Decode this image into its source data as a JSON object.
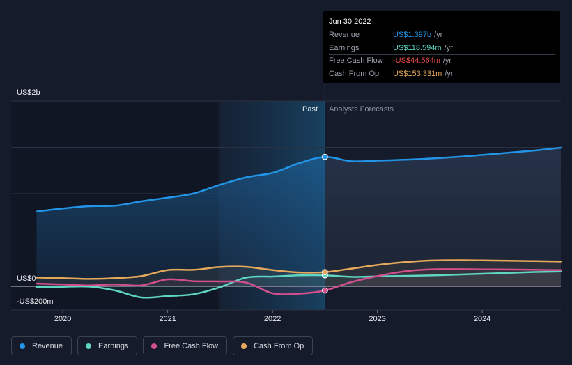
{
  "chart_data": {
    "type": "line",
    "y_axis_labels": [
      "US$2b",
      "US$0",
      "-US$200m"
    ],
    "x_tick_labels": [
      "2020",
      "2021",
      "2022",
      "2023",
      "2024"
    ],
    "x_ticks": [
      2020,
      2021,
      2022,
      2023,
      2024
    ],
    "xlim": [
      2019.72,
      2024.75
    ],
    "ylim": [
      -200,
      2000
    ],
    "divider_x": 2022.5,
    "past_band_start": 2021.5,
    "past_label": "Past",
    "forecast_label": "Analysts Forecasts",
    "series": [
      {
        "name": "Revenue",
        "color": "#2395e8",
        "points": [
          [
            2019.75,
            807
          ],
          [
            2020,
            840
          ],
          [
            2020.25,
            865
          ],
          [
            2020.5,
            870
          ],
          [
            2020.75,
            917
          ],
          [
            2021,
            957
          ],
          [
            2021.25,
            1003
          ],
          [
            2021.5,
            1096
          ],
          [
            2021.75,
            1177
          ],
          [
            2022,
            1224
          ],
          [
            2022.25,
            1327
          ],
          [
            2022.5,
            1397
          ],
          [
            2022.75,
            1350
          ],
          [
            2023,
            1357
          ],
          [
            2023.25,
            1366
          ],
          [
            2023.5,
            1379
          ],
          [
            2023.75,
            1396
          ],
          [
            2024,
            1418
          ],
          [
            2024.25,
            1442
          ],
          [
            2024.5,
            1466
          ],
          [
            2024.75,
            1496
          ]
        ]
      },
      {
        "name": "Earnings",
        "color": "#5fd6c2",
        "points": [
          [
            2019.75,
            -10
          ],
          [
            2020,
            -5
          ],
          [
            2020.25,
            -3
          ],
          [
            2020.5,
            -45
          ],
          [
            2020.75,
            -120
          ],
          [
            2021,
            -105
          ],
          [
            2021.25,
            -85
          ],
          [
            2021.5,
            -10
          ],
          [
            2021.75,
            95
          ],
          [
            2022,
            105
          ],
          [
            2022.25,
            118
          ],
          [
            2022.5,
            119
          ],
          [
            2022.75,
            102
          ],
          [
            2023,
            107
          ],
          [
            2023.25,
            112
          ],
          [
            2023.5,
            117
          ],
          [
            2023.75,
            126
          ],
          [
            2024,
            135
          ],
          [
            2024.25,
            145
          ],
          [
            2024.5,
            154
          ],
          [
            2024.75,
            160
          ]
        ]
      },
      {
        "name": "Free Cash Flow",
        "color": "#d24f8e",
        "points": [
          [
            2019.75,
            30
          ],
          [
            2020,
            20
          ],
          [
            2020.25,
            10
          ],
          [
            2020.5,
            20
          ],
          [
            2020.75,
            10
          ],
          [
            2021,
            75
          ],
          [
            2021.25,
            55
          ],
          [
            2021.5,
            53
          ],
          [
            2021.75,
            40
          ],
          [
            2022,
            -75
          ],
          [
            2022.25,
            -80
          ],
          [
            2022.5,
            -45
          ],
          [
            2022.75,
            45
          ],
          [
            2023,
            110
          ],
          [
            2023.25,
            160
          ],
          [
            2023.5,
            182
          ],
          [
            2023.75,
            185
          ],
          [
            2024,
            183
          ],
          [
            2024.25,
            181
          ],
          [
            2024.5,
            178
          ],
          [
            2024.75,
            175
          ]
        ]
      },
      {
        "name": "Cash From Op",
        "color": "#e6a95c",
        "points": [
          [
            2019.75,
            95
          ],
          [
            2020,
            88
          ],
          [
            2020.25,
            80
          ],
          [
            2020.5,
            88
          ],
          [
            2020.75,
            110
          ],
          [
            2021,
            175
          ],
          [
            2021.25,
            178
          ],
          [
            2021.5,
            208
          ],
          [
            2021.75,
            210
          ],
          [
            2022,
            175
          ],
          [
            2022.25,
            150
          ],
          [
            2022.5,
            153
          ],
          [
            2022.75,
            190
          ],
          [
            2023,
            230
          ],
          [
            2023.25,
            260
          ],
          [
            2023.5,
            278
          ],
          [
            2023.75,
            282
          ],
          [
            2024,
            280
          ],
          [
            2024.25,
            276
          ],
          [
            2024.5,
            272
          ],
          [
            2024.75,
            268
          ]
        ]
      }
    ],
    "markers": [
      {
        "series": "Revenue",
        "x": 2022.5,
        "y": 1397
      },
      {
        "series": "Earnings",
        "x": 2022.5,
        "y": 119
      },
      {
        "series": "Cash From Op",
        "x": 2022.5,
        "y": 153
      },
      {
        "series": "Free Cash Flow",
        "x": 2022.5,
        "y": -45
      }
    ]
  },
  "tooltip": {
    "date": "Jun 30 2022",
    "rows": [
      {
        "label": "Revenue",
        "value": "US$1.397b",
        "unit": "/yr",
        "color": "#2395e8"
      },
      {
        "label": "Earnings",
        "value": "US$118.594m",
        "unit": "/yr",
        "color": "#5fd6c2"
      },
      {
        "label": "Free Cash Flow",
        "value": "-US$44.564m",
        "unit": "/yr",
        "color": "#e64c4c"
      },
      {
        "label": "Cash From Op",
        "value": "US$153.331m",
        "unit": "/yr",
        "color": "#e6a95c"
      }
    ]
  },
  "legend": [
    {
      "label": "Revenue",
      "color": "#2395e8"
    },
    {
      "label": "Earnings",
      "color": "#5fd6c2"
    },
    {
      "label": "Free Cash Flow",
      "color": "#d24f8e"
    },
    {
      "label": "Cash From Op",
      "color": "#e6a95c"
    }
  ]
}
